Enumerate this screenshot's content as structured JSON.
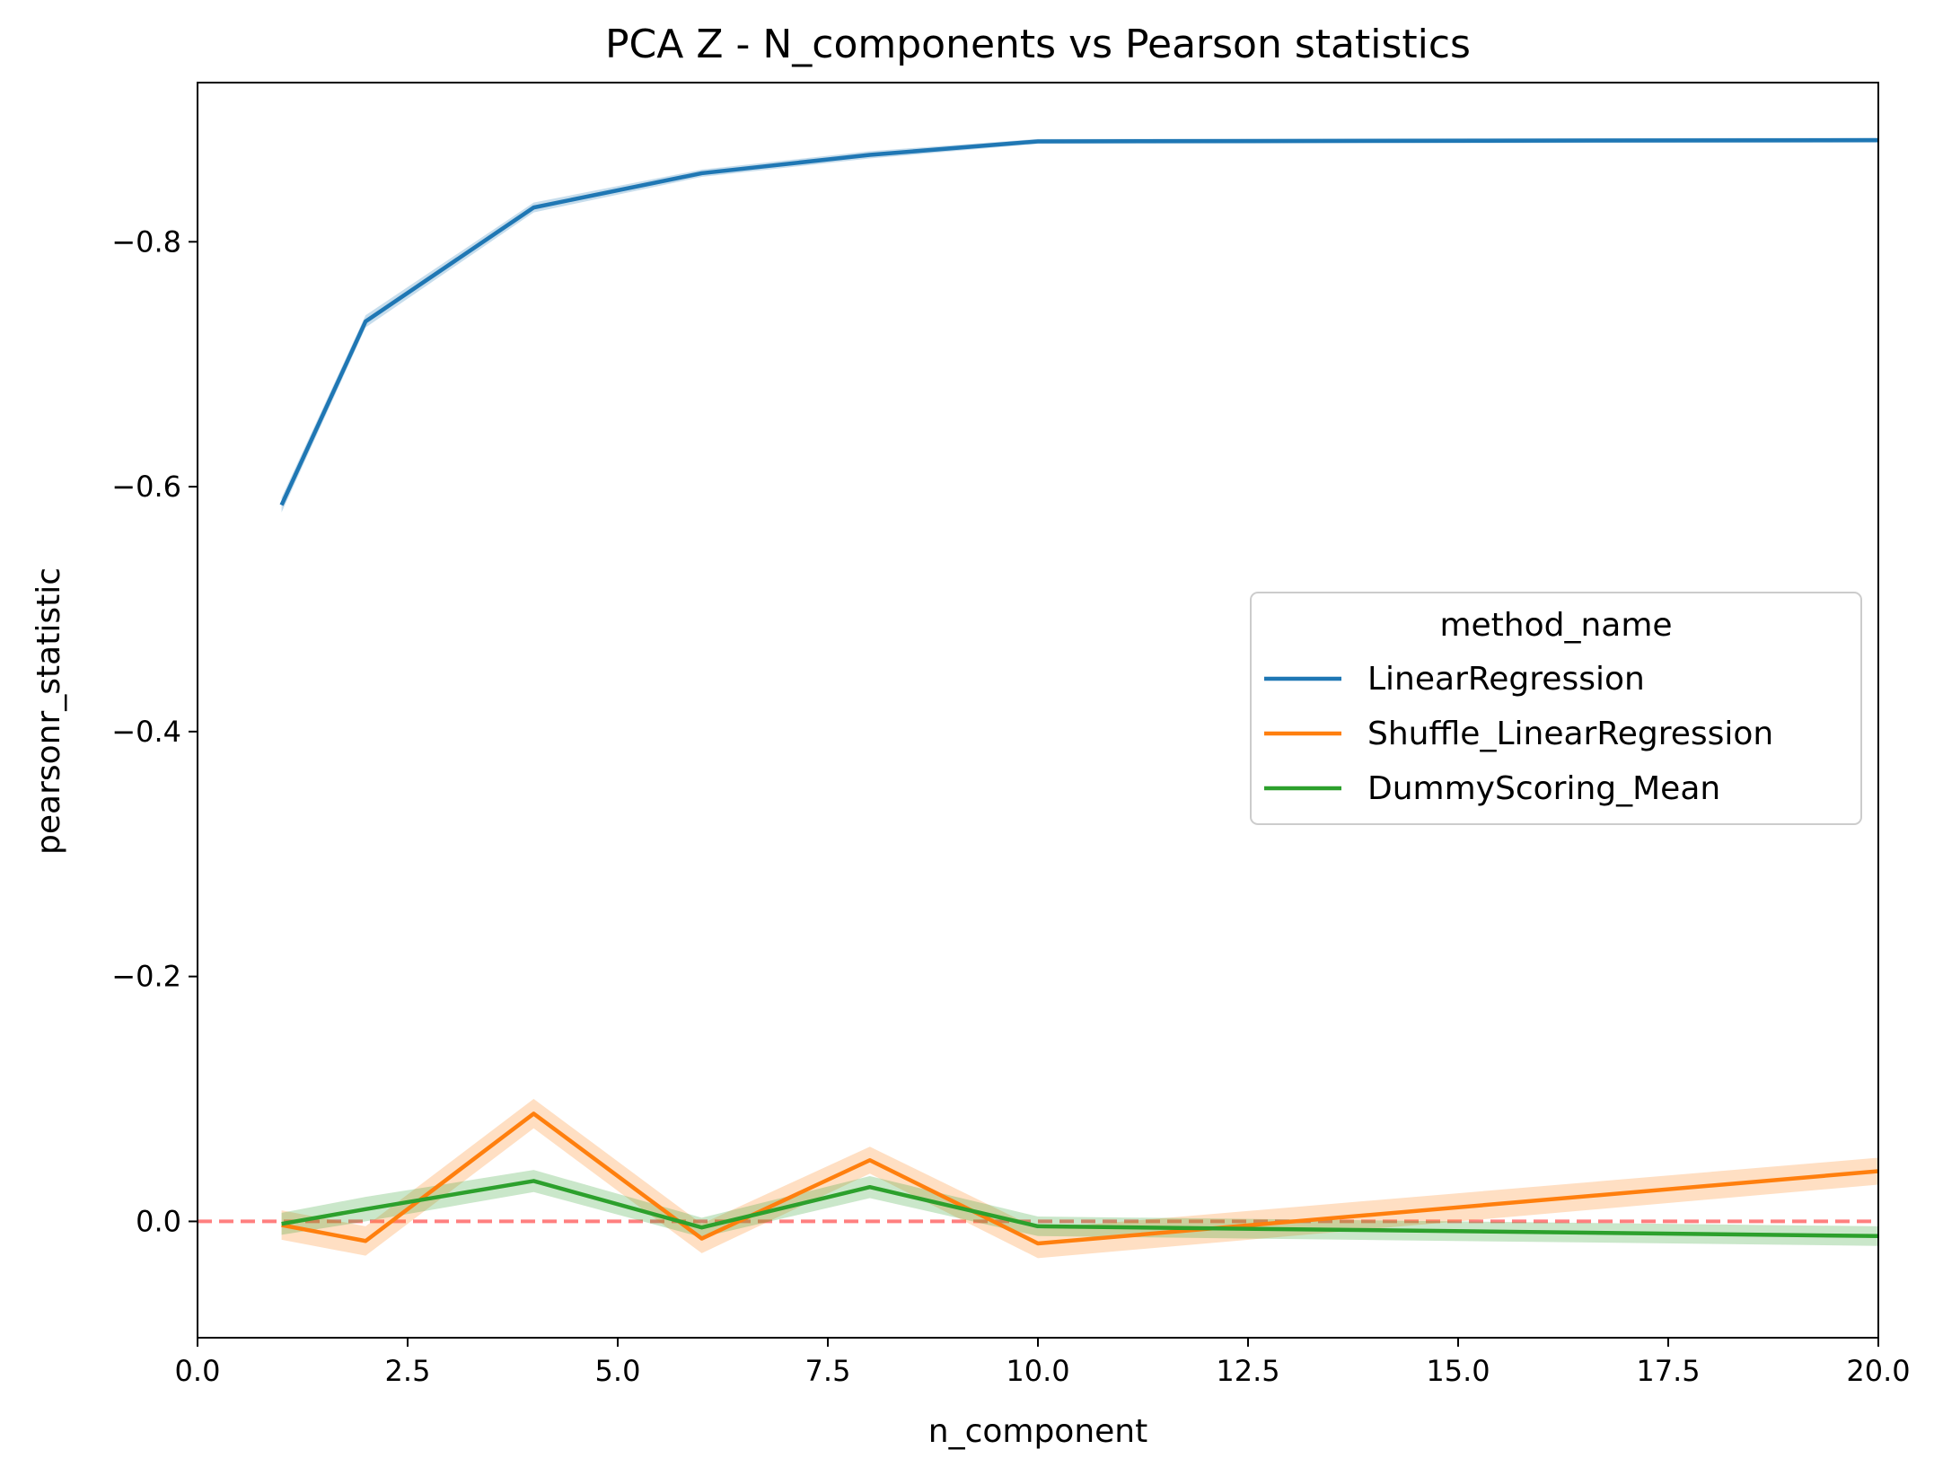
{
  "chart_data": {
    "type": "line",
    "title": "PCA Z - N_components vs Pearson statistics",
    "xlabel": "n_component",
    "ylabel": "pearsonr_statistic",
    "xlim": [
      0,
      20
    ],
    "ylim": [
      0.095,
      -0.93
    ],
    "y_inverted": true,
    "xticks": [
      0,
      2.5,
      5,
      7.5,
      10,
      12.5,
      15,
      17.5,
      20
    ],
    "xtick_labels": [
      "0.0",
      "2.5",
      "5.0",
      "7.5",
      "10.0",
      "12.5",
      "15.0",
      "17.5",
      "20.0"
    ],
    "yticks": [
      -0.8,
      -0.6,
      -0.4,
      -0.2,
      0.0
    ],
    "ytick_labels": [
      "−0.8",
      "−0.6",
      "−0.4",
      "−0.2",
      "0.0"
    ],
    "grid": false,
    "legend": {
      "title": "method_name",
      "placement": "center-right"
    },
    "reference_line": {
      "y": 0.0,
      "style": "dashed",
      "color": "#ff7f7f"
    },
    "series": [
      {
        "name": "LinearRegression",
        "color": "#1f77b4",
        "x": [
          1,
          2,
          4,
          6,
          8,
          10,
          20
        ],
        "y": [
          -0.585,
          -0.735,
          -0.828,
          -0.856,
          -0.871,
          -0.882,
          -0.883
        ],
        "ci_halfwidth": [
          0.006,
          0.005,
          0.004,
          0.003,
          0.003,
          0.002,
          0.002
        ]
      },
      {
        "name": "Shuffle_LinearRegression",
        "color": "#ff7f0e",
        "x": [
          1,
          2,
          4,
          6,
          8,
          10,
          20
        ],
        "y": [
          0.003,
          0.016,
          -0.088,
          0.014,
          -0.05,
          0.018,
          -0.041
        ],
        "ci_halfwidth": [
          0.012,
          0.012,
          0.012,
          0.012,
          0.011,
          0.012,
          0.011
        ]
      },
      {
        "name": "DummyScoring_Mean",
        "color": "#2ca02c",
        "x": [
          1,
          2,
          4,
          6,
          8,
          10,
          20
        ],
        "y": [
          0.002,
          -0.01,
          -0.033,
          0.005,
          -0.028,
          0.004,
          0.012
        ],
        "ci_halfwidth": [
          0.009,
          0.01,
          0.009,
          0.008,
          0.009,
          0.008,
          0.008
        ]
      }
    ]
  }
}
